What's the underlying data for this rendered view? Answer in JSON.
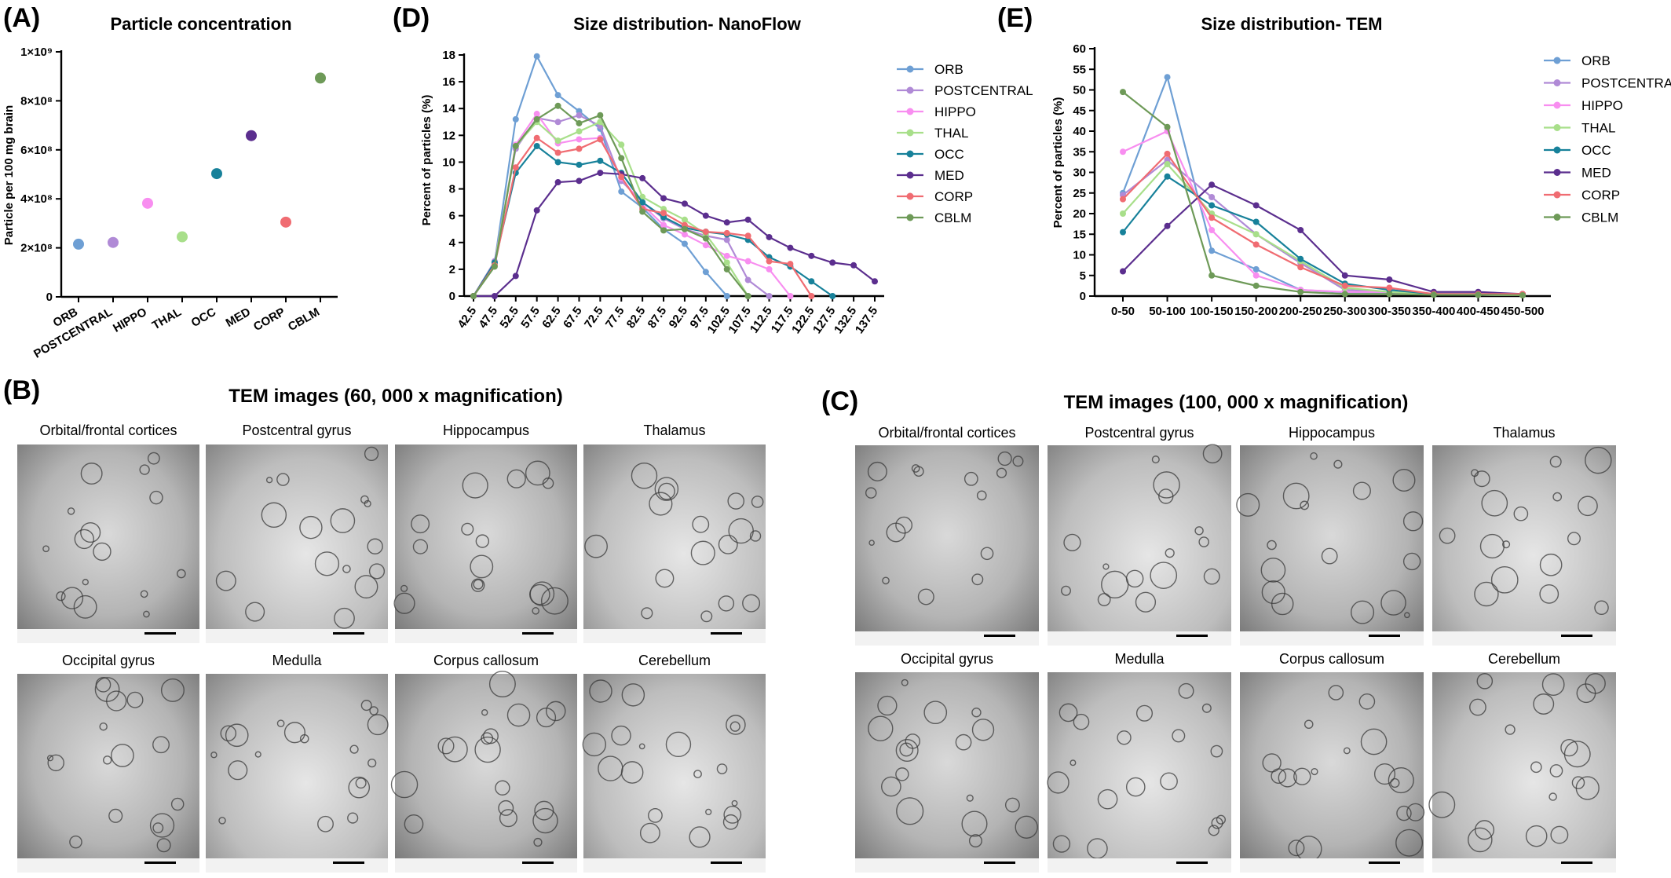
{
  "colors": {
    "ORB": "#6e9fd4",
    "POSTCENTRAL": "#b08ad6",
    "HIPPO": "#f88ef0",
    "THAL": "#a8df8a",
    "OCC": "#17819a",
    "MED": "#5b2e8e",
    "CORP": "#f06c72",
    "CBLM": "#6e9a58"
  },
  "panel_labels": {
    "A": "(A)",
    "B": "(B)",
    "C": "(C)",
    "D": "(D)",
    "E": "(E)"
  },
  "tem": {
    "b_title": "TEM images (60, 000 x magnification)",
    "c_title": "TEM images (100, 000 x magnification)",
    "regions": [
      "Orbital/frontal cortices",
      "Postcentral gyrus",
      "Hippocampus",
      "Thalamus",
      "Occipital gyrus",
      "Medulla",
      "Corpus callosum",
      "Cerebellum"
    ]
  },
  "chart_data": [
    {
      "id": "A",
      "type": "scatter",
      "title": "Particle concentration",
      "xlabel": "",
      "ylabel": "Particle per 100 mg brain",
      "categories": [
        "ORB",
        "POSTCENTRAL",
        "HIPPO",
        "THAL",
        "OCC",
        "MED",
        "CORP",
        "CBLM"
      ],
      "values": [
        215000000,
        222000000,
        382000000,
        245000000,
        503000000,
        658000000,
        305000000,
        893000000
      ],
      "ylim": [
        0,
        1000000000
      ],
      "yticks": [
        "0",
        "2×10⁸",
        "4×10⁸",
        "6×10⁸",
        "8×10⁸",
        "1×10⁹"
      ],
      "legend": "none"
    },
    {
      "id": "D",
      "type": "line",
      "title": "Size distribution- NanoFlow",
      "xlabel": "",
      "ylabel": "Percent of particles (%)",
      "x": [
        "42.5",
        "47.5",
        "52.5",
        "57.5",
        "62.5",
        "67.5",
        "72.5",
        "77.5",
        "82.5",
        "87.5",
        "92.5",
        "97.5",
        "102.5",
        "107.5",
        "112.5",
        "117.5",
        "122.5",
        "127.5",
        "132.5",
        "137.5"
      ],
      "ylim": [
        0,
        18
      ],
      "yticks": [
        0,
        2,
        4,
        6,
        8,
        10,
        12,
        14,
        16,
        18
      ],
      "legend": "right",
      "series": [
        {
          "name": "ORB",
          "values": [
            0,
            2.5,
            13.2,
            17.9,
            15.0,
            13.8,
            12.5,
            7.8,
            6.6,
            5.0,
            3.9,
            1.8,
            0,
            null,
            null,
            null,
            null,
            null,
            null,
            null
          ]
        },
        {
          "name": "POSTCENTRAL",
          "values": [
            0,
            2.6,
            11.0,
            13.3,
            13.0,
            13.5,
            12.7,
            8.6,
            7.0,
            5.8,
            5.0,
            4.5,
            4.2,
            1.2,
            0,
            null,
            null,
            null,
            null,
            null
          ]
        },
        {
          "name": "HIPPO",
          "values": [
            0,
            2.3,
            11.3,
            13.6,
            11.4,
            11.7,
            11.8,
            8.8,
            6.8,
            5.3,
            4.6,
            3.8,
            3.0,
            2.6,
            2.0,
            0,
            null,
            null,
            null,
            null
          ]
        },
        {
          "name": "THAL",
          "values": [
            0,
            2.4,
            11.2,
            13.0,
            11.6,
            12.3,
            13.0,
            11.3,
            7.4,
            6.5,
            5.7,
            4.6,
            2.5,
            0,
            null,
            null,
            null,
            null,
            null,
            null
          ]
        },
        {
          "name": "OCC",
          "values": [
            0,
            2.5,
            9.2,
            11.2,
            10.0,
            9.8,
            10.1,
            9.2,
            7.0,
            5.9,
            5.1,
            4.8,
            4.6,
            4.2,
            2.9,
            2.2,
            1.1,
            0,
            null,
            null
          ]
        },
        {
          "name": "MED",
          "values": [
            0,
            0,
            1.5,
            6.4,
            8.5,
            8.6,
            9.2,
            9.1,
            8.8,
            7.3,
            6.9,
            6.0,
            5.5,
            5.7,
            4.4,
            3.6,
            3.0,
            2.5,
            2.3,
            1.1
          ]
        },
        {
          "name": "CORP",
          "values": [
            0,
            2.3,
            9.6,
            11.8,
            10.7,
            11.0,
            11.7,
            8.9,
            6.5,
            6.2,
            5.3,
            4.8,
            4.7,
            4.5,
            2.6,
            2.4,
            0,
            null,
            null,
            null
          ]
        },
        {
          "name": "CBLM",
          "values": [
            0,
            2.2,
            11.2,
            13.2,
            14.2,
            12.9,
            13.5,
            10.3,
            6.3,
            4.9,
            5.0,
            4.3,
            2.0,
            0,
            null,
            null,
            null,
            null,
            null,
            null
          ]
        }
      ]
    },
    {
      "id": "E",
      "type": "line",
      "title": "Size distribution- TEM",
      "xlabel": "",
      "ylabel": "Percent of particles (%)",
      "x": [
        "0-50",
        "50-100",
        "100-150",
        "150-200",
        "200-250",
        "250-300",
        "300-350",
        "350-400",
        "400-450",
        "450-500"
      ],
      "ylim": [
        0,
        60
      ],
      "yticks": [
        0,
        5,
        10,
        15,
        20,
        25,
        30,
        35,
        40,
        45,
        50,
        55,
        60
      ],
      "legend": "right",
      "series": [
        {
          "name": "ORB",
          "values": [
            25.0,
            53.1,
            11.0,
            6.5,
            1.5,
            0.9,
            0.9,
            0.5,
            0.3,
            0.2
          ]
        },
        {
          "name": "POSTCENTRAL",
          "values": [
            24.5,
            33.0,
            24.0,
            15.0,
            8.0,
            1.5,
            1.0,
            0.5,
            0.5,
            0.3
          ]
        },
        {
          "name": "HIPPO",
          "values": [
            35.0,
            40.0,
            16.0,
            5.0,
            1.5,
            1.0,
            1.0,
            0.5,
            0.3,
            0.2
          ]
        },
        {
          "name": "THAL",
          "values": [
            20.0,
            32.0,
            20.0,
            15.0,
            8.5,
            2.0,
            1.0,
            0.5,
            0.3,
            0.2
          ]
        },
        {
          "name": "OCC",
          "values": [
            15.5,
            29.0,
            22.0,
            18.0,
            9.0,
            3.0,
            1.5,
            0.5,
            0.5,
            0.3
          ]
        },
        {
          "name": "MED",
          "values": [
            6.0,
            17.0,
            27.0,
            22.0,
            16.0,
            5.0,
            4.0,
            1.0,
            1.0,
            0.5
          ]
        },
        {
          "name": "CORP",
          "values": [
            23.5,
            34.5,
            19.0,
            12.5,
            7.0,
            2.5,
            2.0,
            0.5,
            0.5,
            0.5
          ]
        },
        {
          "name": "CBLM",
          "values": [
            49.5,
            41.0,
            5.0,
            2.5,
            1.0,
            0.5,
            0.5,
            0.3,
            0.3,
            0.2
          ]
        }
      ]
    }
  ]
}
